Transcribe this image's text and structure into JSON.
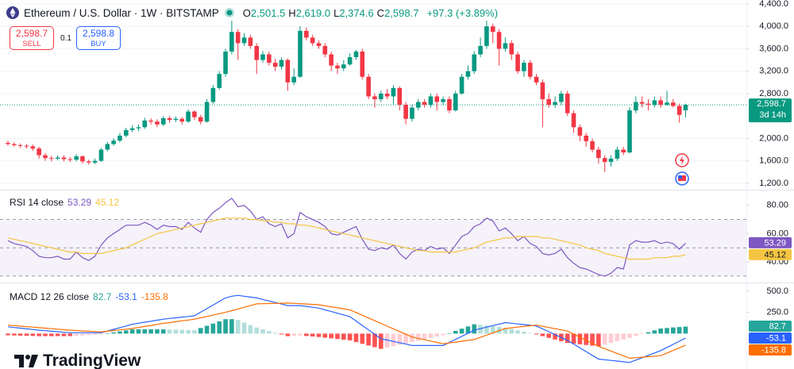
{
  "chart_data": [
    {
      "type": "candlestick",
      "title": "Ethereum / U.S. Dollar · 1W · BITSTAMP",
      "ohlc_legend": [
        {
          "key": "O",
          "value": "2,501.5"
        },
        {
          "key": "H",
          "value": "2,619.0"
        },
        {
          "key": "L",
          "value": "2,374.6"
        },
        {
          "key": "C",
          "value": "2,598.7"
        }
      ],
      "change": "+97.3 (+3.89%)",
      "up_color": "#089981",
      "down_color": "#f23645",
      "open": [
        1920,
        1900,
        1880,
        1870,
        1860,
        1820,
        1700,
        1650,
        1640,
        1660,
        1630,
        1620,
        1680,
        1590,
        1570,
        1600,
        1800,
        1900,
        1960,
        2050,
        2150,
        2180,
        2200,
        2320,
        2300,
        2250,
        2360,
        2330,
        2350,
        2300,
        2480,
        2380,
        2300,
        2650,
        2900,
        3150,
        3550,
        3900,
        3700,
        3800,
        3650,
        3400,
        3500,
        3350,
        3280,
        3400,
        3000,
        3100,
        3920,
        3800,
        3700,
        3650,
        3500,
        3300,
        3250,
        3320,
        3450,
        3550,
        3100,
        2750,
        2700,
        2800,
        2750,
        2900,
        2600,
        2350,
        2550,
        2650,
        2600,
        2750,
        2650,
        2700,
        2500,
        2800,
        3100,
        3200,
        3500,
        3650,
        4000,
        3900,
        3600,
        3700,
        3500,
        3200,
        3350,
        3100,
        3000,
        2700,
        2600,
        2650,
        2800,
        2450,
        2200,
        2050,
        1950,
        1800,
        1650,
        1580,
        1640,
        1800,
        1750,
        2500,
        2650,
        2620,
        2600,
        2680,
        2600,
        2640,
        2580,
        2501.5
      ],
      "high": [
        1960,
        1930,
        1910,
        1900,
        1890,
        1850,
        1740,
        1690,
        1700,
        1700,
        1670,
        1720,
        1700,
        1620,
        1640,
        1830,
        1940,
        2000,
        2100,
        2190,
        2230,
        2250,
        2370,
        2360,
        2340,
        2400,
        2400,
        2390,
        2380,
        2520,
        2500,
        2420,
        2700,
        2950,
        3200,
        3600,
        4100,
        3950,
        3880,
        3850,
        3700,
        3560,
        3550,
        3420,
        3450,
        3430,
        3250,
        4000,
        3980,
        3850,
        3750,
        3700,
        3550,
        3350,
        3400,
        3520,
        3580,
        3600,
        3150,
        2800,
        2850,
        2880,
        2950,
        2930,
        2650,
        2600,
        2700,
        2700,
        2800,
        2800,
        2750,
        2750,
        2850,
        3150,
        3300,
        3560,
        3800,
        4100,
        4050,
        3950,
        3800,
        3750,
        3550,
        3400,
        3400,
        3150,
        3050,
        2800,
        2750,
        2850,
        2850,
        2500,
        2250,
        2100,
        2000,
        1850,
        1700,
        1700,
        1850,
        1850,
        2560,
        2750,
        2750,
        2700,
        2750,
        2750,
        2850,
        2700,
        2620,
        2619.0
      ],
      "low": [
        1870,
        1850,
        1830,
        1820,
        1780,
        1640,
        1600,
        1590,
        1610,
        1590,
        1580,
        1590,
        1550,
        1530,
        1540,
        1580,
        1770,
        1870,
        1930,
        2020,
        2110,
        2130,
        2170,
        2250,
        2200,
        2220,
        2280,
        2290,
        2250,
        2280,
        2330,
        2250,
        2280,
        2620,
        2870,
        3100,
        3500,
        3400,
        3650,
        3600,
        3150,
        3350,
        3300,
        3200,
        3230,
        2850,
        2950,
        3080,
        3750,
        3650,
        3600,
        3450,
        3200,
        3150,
        3200,
        3300,
        3400,
        3050,
        2700,
        2550,
        2650,
        2700,
        2600,
        2500,
        2250,
        2300,
        2500,
        2550,
        2550,
        2500,
        2600,
        2450,
        2480,
        2780,
        3050,
        3150,
        3450,
        3600,
        3700,
        3300,
        3550,
        3400,
        3150,
        3100,
        3050,
        2950,
        2200,
        2550,
        2550,
        2600,
        2400,
        2100,
        1950,
        1850,
        1750,
        1550,
        1400,
        1500,
        1600,
        1700,
        1730,
        2450,
        2550,
        2500,
        2550,
        2550,
        2580,
        2550,
        2280,
        2374.6
      ],
      "close": [
        1900,
        1880,
        1870,
        1860,
        1820,
        1700,
        1650,
        1640,
        1660,
        1630,
        1620,
        1680,
        1590,
        1570,
        1600,
        1800,
        1900,
        1960,
        2050,
        2150,
        2180,
        2200,
        2320,
        2300,
        2250,
        2360,
        2330,
        2350,
        2300,
        2480,
        2380,
        2300,
        2650,
        2900,
        3150,
        3550,
        3900,
        3700,
        3800,
        3650,
        3400,
        3500,
        3350,
        3280,
        3400,
        3000,
        3100,
        3920,
        3800,
        3700,
        3650,
        3500,
        3300,
        3250,
        3320,
        3450,
        3550,
        3100,
        2750,
        2700,
        2800,
        2750,
        2900,
        2600,
        2350,
        2550,
        2650,
        2600,
        2750,
        2650,
        2700,
        2500,
        2800,
        3100,
        3200,
        3500,
        3650,
        4000,
        3900,
        3600,
        3700,
        3500,
        3200,
        3350,
        3100,
        3000,
        2700,
        2600,
        2650,
        2800,
        2450,
        2200,
        2050,
        1950,
        1800,
        1650,
        1580,
        1640,
        1800,
        1750,
        2500,
        2650,
        2620,
        2600,
        2680,
        2600,
        2640,
        2580,
        2420,
        2598.7
      ],
      "ylim": [
        1100,
        4470
      ],
      "yticks": [
        {
          "value": 1200,
          "label": "1,200.0"
        },
        {
          "value": 1600,
          "label": "1,600.0"
        },
        {
          "value": 2000,
          "label": "2,000.0"
        },
        {
          "value": 2800,
          "label": "2,800.0"
        },
        {
          "value": 3200,
          "label": "3,200.0"
        },
        {
          "value": 3600,
          "label": "3,600.0"
        },
        {
          "value": 4000,
          "label": "4,000.0"
        },
        {
          "value": 4400,
          "label": "4,400.0"
        }
      ],
      "last_price_label": "2,598.7",
      "countdown": "3d 14h",
      "price_line": true,
      "grid": true
    },
    {
      "type": "line",
      "title": "RSI 14 close",
      "series": [
        {
          "color": "#7e57c2",
          "values": [
            55,
            53,
            52,
            51,
            48,
            44,
            43,
            43,
            44,
            42,
            42,
            47,
            43,
            41,
            44,
            52,
            57,
            60,
            63,
            66,
            66,
            66,
            68,
            66,
            63,
            66,
            65,
            65,
            63,
            68,
            64,
            61,
            70,
            75,
            78,
            82,
            85,
            79,
            80,
            76,
            70,
            72,
            67,
            65,
            67,
            57,
            60,
            75,
            72,
            70,
            68,
            65,
            60,
            59,
            61,
            63,
            65,
            56,
            49,
            48,
            50,
            49,
            52,
            46,
            42,
            47,
            49,
            48,
            51,
            49,
            50,
            46,
            52,
            58,
            60,
            65,
            67,
            71,
            69,
            62,
            64,
            60,
            55,
            58,
            53,
            51,
            46,
            45,
            46,
            49,
            43,
            39,
            36,
            35,
            33,
            31,
            30,
            32,
            36,
            35,
            52,
            55,
            54,
            54,
            55,
            53,
            54,
            53,
            49,
            53.29
          ]
        },
        {
          "color": "#f5c542",
          "values": [
            57,
            56,
            55,
            54,
            53,
            52,
            51,
            50,
            49,
            48,
            47,
            47,
            46,
            46,
            46,
            46,
            47,
            48,
            49,
            50,
            52,
            54,
            56,
            58,
            60,
            61,
            62,
            63,
            64,
            65,
            66,
            67,
            68,
            69,
            70,
            71,
            71,
            71,
            71,
            70,
            70,
            69,
            69,
            68,
            68,
            67,
            67,
            66,
            66,
            65,
            64,
            63,
            62,
            61,
            60,
            59,
            58,
            57,
            56,
            55,
            54,
            53,
            52,
            51,
            50,
            49,
            48,
            48,
            47,
            47,
            47,
            47,
            47,
            48,
            49,
            50,
            52,
            54,
            55,
            56,
            57,
            57,
            58,
            58,
            58,
            58,
            57,
            57,
            56,
            55,
            54,
            53,
            52,
            50,
            49,
            48,
            46,
            45,
            44,
            43,
            42,
            42,
            42,
            42,
            43,
            43,
            43,
            44,
            44,
            45.12
          ]
        }
      ],
      "levels": [
        70,
        50,
        30
      ],
      "band_color": "#7e57c2",
      "ylim": [
        26,
        90
      ],
      "yticks": [
        {
          "value": 40,
          "label": "40.00"
        },
        {
          "value": 60,
          "label": "60.00"
        },
        {
          "value": 80,
          "label": "80.00"
        }
      ]
    },
    {
      "type": "macd",
      "title": "MACD 12 26 close",
      "series": [
        {
          "kind": "histogram",
          "palette": {
            "pos_rising": "#26a69a",
            "pos_falling": "#b2dfdb",
            "neg_rising": "#ffcdd2",
            "neg_falling": "#ff5252"
          },
          "values": [
            -20,
            -22,
            -24,
            -26,
            -28,
            -30,
            -30,
            -30,
            -30,
            -30,
            -30,
            -26,
            -22,
            -18,
            -14,
            -10,
            2,
            14,
            26,
            38,
            50,
            50,
            50,
            50,
            50,
            50,
            48,
            46,
            44,
            42,
            40,
            66,
            92,
            118,
            144,
            170,
            170,
            160,
            130,
            100,
            70,
            50,
            30,
            10,
            -10,
            -30,
            -26,
            -22,
            -28,
            -34,
            -40,
            -48,
            -56,
            -64,
            -72,
            -80,
            -100,
            -120,
            -140,
            -160,
            -180,
            -164,
            -148,
            -132,
            -116,
            -100,
            -84,
            -68,
            -52,
            -36,
            -20,
            6,
            32,
            58,
            84,
            110,
            102,
            94,
            86,
            78,
            70,
            54,
            38,
            22,
            6,
            -10,
            -30,
            -50,
            -70,
            -90,
            -110,
            -118,
            -126,
            -134,
            -142,
            -150,
            -130,
            -110,
            -90,
            -70,
            -50,
            -28,
            -6,
            16,
            38,
            60,
            66,
            72,
            77,
            82.7
          ]
        },
        {
          "kind": "line",
          "color": "#2962ff",
          "values": [
            80,
            72,
            64,
            56,
            48,
            40,
            34,
            28,
            22,
            16,
            10,
            10,
            10,
            10,
            10,
            10,
            30,
            50,
            70,
            90,
            110,
            122,
            134,
            146,
            158,
            170,
            178,
            186,
            194,
            202,
            210,
            252,
            294,
            336,
            378,
            420,
            440,
            450,
            440,
            430,
            420,
            402,
            384,
            366,
            348,
            330,
            330,
            330,
            320,
            310,
            300,
            280,
            260,
            240,
            220,
            200,
            148,
            96,
            44,
            -8,
            -60,
            -76,
            -92,
            -108,
            -124,
            -140,
            -140,
            -140,
            -140,
            -140,
            -140,
            -104,
            -68,
            -32,
            4,
            40,
            58,
            76,
            94,
            112,
            130,
            122,
            114,
            106,
            98,
            90,
            56,
            22,
            -12,
            -46,
            -80,
            -124,
            -168,
            -212,
            -256,
            -300,
            -308,
            -316,
            -324,
            -332,
            -340,
            -312,
            -284,
            -256,
            -228,
            -200,
            -163,
            -126,
            -90,
            -53.1
          ]
        },
        {
          "kind": "line",
          "color": "#ff6d00",
          "values": [
            100,
            94,
            88,
            82,
            76,
            70,
            64,
            58,
            52,
            46,
            40,
            36,
            32,
            28,
            24,
            20,
            28,
            36,
            44,
            52,
            60,
            72,
            84,
            96,
            108,
            120,
            130,
            140,
            150,
            160,
            170,
            186,
            202,
            218,
            234,
            250,
            270,
            290,
            310,
            330,
            350,
            352,
            354,
            356,
            358,
            360,
            356,
            352,
            348,
            344,
            340,
            328,
            316,
            304,
            292,
            280,
            248,
            216,
            184,
            152,
            120,
            88,
            56,
            24,
            -8,
            -40,
            -56,
            -72,
            -88,
            -104,
            -120,
            -110,
            -100,
            -90,
            -80,
            -70,
            -44,
            -18,
            8,
            34,
            60,
            68,
            76,
            84,
            92,
            100,
            86,
            72,
            58,
            44,
            30,
            -6,
            -42,
            -78,
            -114,
            -150,
            -178,
            -206,
            -234,
            -262,
            -290,
            -284,
            -278,
            -272,
            -266,
            -260,
            -229,
            -198,
            -167,
            -135.8
          ]
        }
      ],
      "ylim": [
        -417,
        583
      ],
      "yticks": [
        {
          "value": 250,
          "label": "250.0"
        },
        {
          "value": 500,
          "label": "500.0"
        }
      ]
    }
  ],
  "trade": {
    "sell_price": "2,598.7",
    "sell": "SELL",
    "quantity": "0.1",
    "buy_price": "2,598.8",
    "buy": "BUY"
  },
  "branding": "TradingView"
}
